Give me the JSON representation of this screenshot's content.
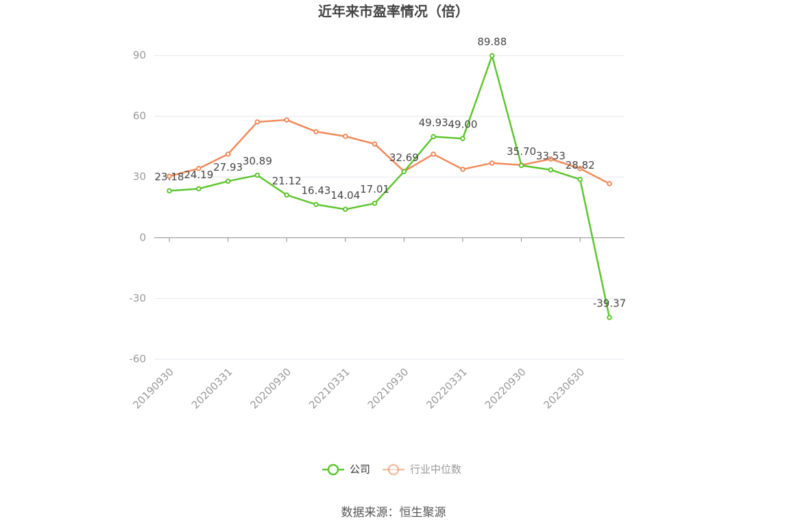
{
  "chart_data": {
    "type": "line",
    "title": "近年来市盈率情况（倍）",
    "source": "数据来源：恒生聚源",
    "categories": [
      "20190930",
      null,
      "20200331",
      null,
      "20200930",
      null,
      "20210331",
      null,
      "20210930",
      null,
      "20220331",
      null,
      "20220930",
      null,
      "20230630",
      null
    ],
    "series": [
      {
        "name": "公司",
        "color": "#5ec52e",
        "values": [
          23.18,
          24.19,
          27.93,
          30.89,
          21.12,
          16.43,
          14.04,
          17.01,
          32.69,
          49.93,
          49.0,
          89.88,
          35.7,
          33.53,
          28.82,
          -39.37
        ],
        "value_labels": [
          "23.18",
          "24.19",
          "27.93",
          "30.89",
          "21.12",
          "16.43",
          "14.04",
          "17.01",
          "32.69",
          "49.93",
          "49.00",
          "89.88",
          "35.70",
          "33.53",
          "28.82",
          "-39.37"
        ]
      },
      {
        "name": "行业中位数",
        "color": "#f0895b",
        "values": [
          30.4,
          34.2,
          41.3,
          57.2,
          58.2,
          52.4,
          50.1,
          46.3,
          32.8,
          41.3,
          33.8,
          36.9,
          35.9,
          38.9,
          34.2,
          26.7
        ]
      }
    ],
    "ylim": [
      -60,
      90
    ],
    "yticks": [
      -60,
      -30,
      0,
      30,
      60,
      90
    ],
    "grid": true
  }
}
